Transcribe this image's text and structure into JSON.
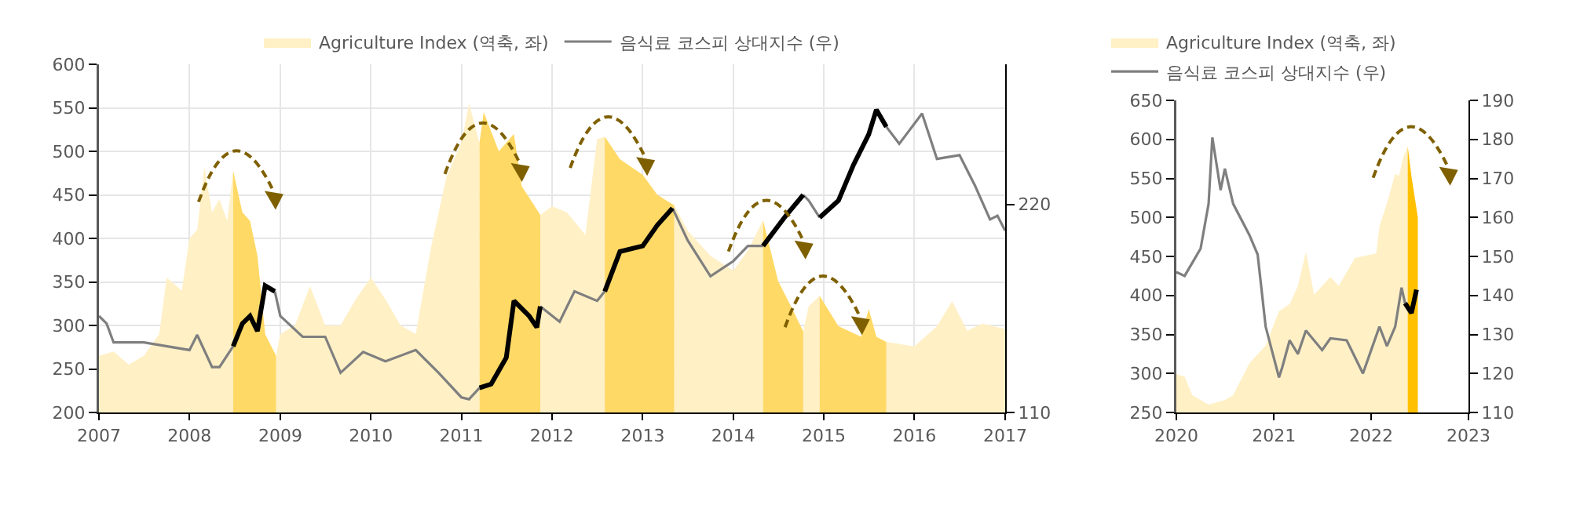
{
  "chart_data": [
    {
      "type": "area",
      "legend": "top",
      "grid": true,
      "xlim": [
        "2007",
        "2017"
      ],
      "xticks": [
        "2007",
        "2008",
        "2009",
        "2010",
        "2011",
        "2012",
        "2013",
        "2014",
        "2015",
        "2016",
        "2017"
      ],
      "ylim": [
        200,
        600
      ],
      "yticks": [
        200,
        250,
        300,
        350,
        400,
        450,
        500,
        550,
        600
      ],
      "y2lim": [
        110,
        294
      ],
      "y2ticks": [
        110,
        220
      ],
      "series": [
        {
          "name": "Agriculture Index (역축, 좌)",
          "color": "#fff0c6",
          "x": [
            "2007-01",
            "2007-03",
            "2007-05",
            "2007-07",
            "2007-09",
            "2007-10",
            "2007-12",
            "2008-01",
            "2008-02",
            "2008-03",
            "2008-04",
            "2008-05",
            "2008-06",
            "2008-06-25",
            "2008-09",
            "2008-12-15",
            "2009-01",
            "2009-03",
            "2009-05",
            "2009-07",
            "2009-09",
            "2009-11",
            "2010-01",
            "2010-03",
            "2010-05",
            "2010-07",
            "2010-09",
            "2010-11",
            "2011-01",
            "2011-02",
            "2011-03-15",
            "2011-07",
            "2011-11-15",
            "2012-01",
            "2012-03",
            "2012-05-15",
            "2012-07",
            "2012-08-01",
            "2012-12",
            "2013-05-08",
            "2013-07",
            "2013-10",
            "2014-01",
            "2014-03",
            "2014-05",
            "2014-07",
            "2014-10-10",
            "2014-11",
            "2014-12-15",
            "2015-04",
            "2015-09-10",
            "2016-01",
            "2016-04",
            "2016-06",
            "2016-08",
            "2016-10",
            "2017-01"
          ],
          "values": [
            265,
            270,
            255,
            265,
            290,
            355,
            340,
            400,
            410,
            482,
            430,
            445,
            420,
            478,
            null,
            265,
            290,
            300,
            345,
            300,
            300,
            330,
            355,
            330,
            300,
            290,
            390,
            470,
            510,
            555,
            510,
            null,
            427,
            437,
            430,
            404,
            514,
            517,
            null,
            438,
            409,
            380,
            363,
            386,
            421,
            null,
            293,
            322,
            334,
            null,
            281,
            276,
            299,
            328,
            294,
            302,
            296
          ]
        },
        {
          "color": "#ffd966",
          "x": [
            "2008-06-25",
            "2008-08",
            "2008-09",
            "2008-10",
            "2008-11",
            "2008-12-15",
            "2009-06",
            "2011-03-15",
            "2011-04",
            "2011-06",
            "2011-08",
            "2011-09",
            "2011-10",
            "2011-11-15",
            "2012-03",
            "2012-08-01",
            "2012-10",
            "2013-01",
            "2013-03",
            "2013-05-08",
            "2013-10",
            "2014-05",
            "2014-07",
            "2014-09",
            "2014-10-10",
            "2014-11",
            "2014-12-15",
            "2015-03",
            "2015-06",
            "2015-07",
            "2015-08",
            "2015-09-10"
          ],
          "values": [
            478,
            430,
            420,
            380,
            290,
            265,
            null,
            510,
            545,
            500,
            520,
            460,
            447,
            427,
            null,
            517,
            491,
            473,
            450,
            438,
            null,
            421,
            351,
            316,
            293,
            null,
            334,
            299,
            287,
            319,
            287,
            281
          ]
        },
        {
          "name": "음식료 코스피 상대지수 (우)",
          "type": "line",
          "axis": "y2",
          "color": "#7f7f7f",
          "x": [
            "2007-01",
            "2007-02",
            "2007-03",
            "2007-07",
            "2008-01",
            "2008-02",
            "2008-04",
            "2008-05",
            "2008-06-25",
            "2008-09",
            "2008-12-10",
            "2009-01",
            "2009-04",
            "2009-07",
            "2009-09",
            "2009-12",
            "2010-03",
            "2010-07",
            "2010-10",
            "2011-01",
            "2011-02",
            "2011-03-15",
            "2011-07",
            "2011-11-15",
            "2012-02",
            "2012-04",
            "2012-07",
            "2012-08-01",
            "2012-12",
            "2013-05-01",
            "2013-07",
            "2013-10",
            "2014-01",
            "2014-03",
            "2014-05",
            "2014-07",
            "2014-10-10",
            "2014-11",
            "2014-12-15",
            "2015-04",
            "2015-09-10",
            "2015-11",
            "2016-02",
            "2016-04",
            "2016-07",
            "2016-09",
            "2016-11",
            "2016-12",
            "2017-01"
          ],
          "values": [
            161,
            157,
            147,
            147,
            143,
            151,
            134,
            134,
            145,
            null,
            174,
            161,
            150,
            150,
            131,
            142,
            137,
            143,
            131,
            118,
            117,
            123,
            null,
            166,
            158,
            174,
            169,
            174,
            null,
            218,
            201,
            182,
            190,
            198,
            198,
            null,
            225,
            222,
            213,
            null,
            261,
            252,
            268,
            244,
            246,
            230,
            212,
            214,
            206
          ]
        },
        {
          "type": "line",
          "axis": "y2",
          "color": "#000000",
          "x": [
            "2008-06-25",
            "2008-08",
            "2008-09",
            "2008-10",
            "2008-11",
            "2008-12-10",
            "2009-06",
            "2011-03-15",
            "2011-05",
            "2011-07",
            "2011-08",
            "2011-10",
            "2011-11-01",
            "2011-11-15",
            "2012-03",
            "2012-08-01",
            "2012-10",
            "2013-01",
            "2013-03",
            "2013-05-01",
            "2013-10",
            "2014-05",
            "2014-08",
            "2014-10-10",
            "2014-11",
            "2014-12-15",
            "2015-03",
            "2015-05",
            "2015-07",
            "2015-08",
            "2015-09-10"
          ],
          "values": [
            145,
            157,
            161,
            153,
            177,
            174,
            null,
            123,
            125,
            139,
            169,
            161,
            155,
            166,
            null,
            174,
            195,
            198,
            209,
            218,
            null,
            198,
            214,
            225,
            null,
            213,
            222,
            241,
            257,
            270,
            261
          ]
        }
      ]
    },
    {
      "type": "area",
      "legend": "top left",
      "xlim": [
        "2020",
        "2023"
      ],
      "xticks": [
        "2020",
        "2021",
        "2022",
        "2023"
      ],
      "ylim": [
        250,
        650
      ],
      "yticks": [
        250,
        300,
        350,
        400,
        450,
        500,
        550,
        600,
        650
      ],
      "y2lim": [
        110,
        190
      ],
      "y2ticks": [
        110,
        120,
        130,
        140,
        150,
        160,
        170,
        180,
        190
      ],
      "series": [
        {
          "name": "Agriculture Index (역축, 좌)",
          "color": "#fff0c6",
          "x": [
            "2020-01",
            "2020-02",
            "2020-03",
            "2020-05",
            "2020-07",
            "2020-08",
            "2020-10",
            "2020-12",
            "2021-01-20",
            "2021-03",
            "2021-04",
            "2021-05",
            "2021-06",
            "2021-08",
            "2021-09",
            "2021-11",
            "2022-01-20",
            "2022-02",
            "2022-03",
            "2022-04-01",
            "2022-04-15",
            "2022-05-01",
            "2022-05-18"
          ],
          "values": [
            299,
            296,
            272,
            260,
            266,
            272,
            313,
            336,
            380,
            389,
            412,
            456,
            401,
            424,
            412,
            448,
            454,
            489,
            518,
            556,
            553,
            577,
            591
          ]
        },
        {
          "color": "#ffc000",
          "x": [
            "2022-05-18",
            "2022-06",
            "2022-06-25"
          ],
          "values": [
            591,
            553,
            500
          ]
        },
        {
          "name": "음식료 코스피 상대지수 (우)",
          "type": "line",
          "axis": "y2",
          "color": "#7f7f7f",
          "x": [
            "2020-01",
            "2020-02",
            "2020-04",
            "2020-05",
            "2020-05-15",
            "2020-06-15",
            "2020-07",
            "2020-08",
            "2020-10",
            "2020-11",
            "2020-12",
            "2021-01-20",
            "2021-02",
            "2021-03",
            "2021-04",
            "2021-05",
            "2021-07",
            "2021-08",
            "2021-10",
            "2021-12",
            "2022-01",
            "2022-02",
            "2022-03",
            "2022-04",
            "2022-04-25",
            "2022-05-08"
          ],
          "values": [
            146,
            145,
            152,
            163.5,
            180.5,
            167,
            172.5,
            163.5,
            155.5,
            150.5,
            132,
            119,
            121.5,
            128.5,
            125,
            131,
            126,
            129,
            128.5,
            120,
            126,
            132,
            127,
            132,
            142,
            138
          ]
        },
        {
          "type": "line",
          "axis": "y2",
          "color": "#000000",
          "x": [
            "2022-05-08",
            "2022-06",
            "2022-06-20"
          ],
          "values": [
            138,
            135.5,
            141.5
          ]
        }
      ]
    }
  ]
}
